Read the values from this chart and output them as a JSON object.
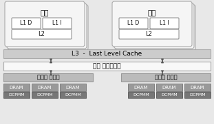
{
  "fig_bg": "#e8e8e8",
  "core_fill": "#f5f5f5",
  "core_border": "#aaaaaa",
  "l1_fill": "#ffffff",
  "l1_border": "#888888",
  "l2_fill": "#ffffff",
  "l2_border": "#888888",
  "l3_fill": "#cccccc",
  "l3_border": "#aaaaaa",
  "mesh_fill": "#f8f8f8",
  "mesh_border": "#aaaaaa",
  "memctrl_fill": "#bbbbbb",
  "memctrl_border": "#999999",
  "dram_fill": "#999999",
  "dram_border": "#777777",
  "dcpmm_fill": "#777777",
  "dcpmm_border": "#555555",
  "arrow_color": "#555555",
  "core_label": "코어",
  "l1d_label": "L1 D",
  "l1i_label": "L1 I",
  "l2_label": "L2",
  "l3_label": "L3  -  Last Level Cache",
  "mesh_label": "메슈 인터케넥트",
  "mem_ctrl_label": "메모리 제어기",
  "dram_label": "DRAM",
  "dcpmm_label": "DCPMM"
}
